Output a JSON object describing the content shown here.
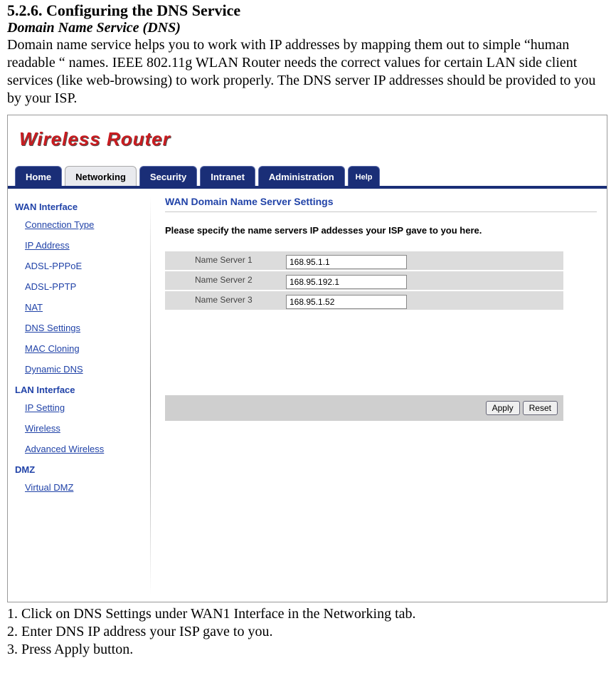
{
  "doc": {
    "heading": "5.2.6. Configuring the DNS Service",
    "subheading": "Domain Name Service (DNS)",
    "para": "Domain name service helps you to work with IP addresses by mapping them out to simple “human readable “ names. IEEE 802.11g WLAN Router needs the correct values for certain LAN side client services (like web-browsing) to work properly. The DNS server IP addresses should be provided to you by your ISP.",
    "steps": [
      "1. Click on DNS Settings under WAN1 Interface in the Networking tab.",
      "2. Enter DNS IP address your ISP gave to you.",
      "3. Press Apply button."
    ]
  },
  "router": {
    "brand": "Wireless Router",
    "tabs": {
      "home": "Home",
      "networking": "Networking",
      "security": "Security",
      "intranet": "Intranet",
      "administration": "Administration",
      "help": "Help"
    },
    "sidebar": {
      "wan_head": "WAN Interface",
      "wan": {
        "connection_type": "Connection Type",
        "ip_address": "IP Address",
        "adsl_pppoe": "ADSL-PPPoE",
        "adsl_pptp": "ADSL-PPTP",
        "nat": "NAT",
        "dns_settings": "DNS Settings",
        "mac_cloning": "MAC Cloning",
        "dynamic_dns": "Dynamic DNS"
      },
      "lan_head": "LAN Interface",
      "lan": {
        "ip_setting": "IP Setting",
        "wireless": "Wireless",
        "advanced_wireless": "Advanced Wireless"
      },
      "dmz_head": "DMZ",
      "dmz": {
        "virtual_dmz": "Virtual DMZ"
      }
    },
    "main": {
      "title": "WAN Domain Name Server Settings",
      "instruction": "Please specify the name servers IP addesses your ISP gave to you here.",
      "rows": [
        {
          "label": "Name Server 1",
          "value": "168.95.1.1"
        },
        {
          "label": "Name Server 2",
          "value": "168.95.192.1"
        },
        {
          "label": "Name Server 3",
          "value": "168.95.1.52"
        }
      ],
      "apply": "Apply",
      "reset": "Reset"
    }
  }
}
